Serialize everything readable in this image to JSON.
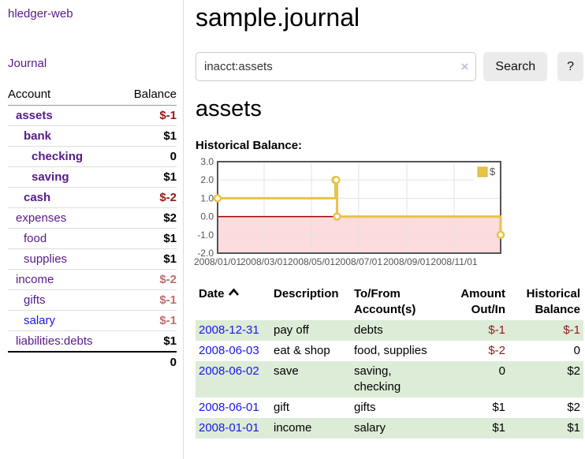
{
  "app": {
    "brand": "hledger-web",
    "journal_label": "Journal"
  },
  "sidebar": {
    "header": {
      "account": "Account",
      "balance": "Balance"
    },
    "accounts": [
      {
        "name": "assets",
        "balance": "$-1"
      },
      {
        "name": "bank",
        "balance": "$1"
      },
      {
        "name": "checking",
        "balance": "0"
      },
      {
        "name": "saving",
        "balance": "$1"
      },
      {
        "name": "cash",
        "balance": "$-2"
      },
      {
        "name": "expenses",
        "balance": "$2"
      },
      {
        "name": "food",
        "balance": "$1"
      },
      {
        "name": "supplies",
        "balance": "$1"
      },
      {
        "name": "income",
        "balance": "$-2"
      },
      {
        "name": "gifts",
        "balance": "$-1"
      },
      {
        "name": "salary",
        "balance": "$-1"
      },
      {
        "name": "liabilities:debts",
        "balance": "$1"
      }
    ],
    "total": "0"
  },
  "main": {
    "title": "sample.journal",
    "search": {
      "value": "inacct:assets",
      "clear_icon": "×",
      "button_label": "Search",
      "help_label": "?"
    },
    "account_heading": "assets",
    "section_label": "Historical Balance:"
  },
  "chart_data": {
    "type": "line",
    "title": "Historical Balance",
    "step": true,
    "legend": {
      "label": "$",
      "position": "top-right"
    },
    "x_start": "2008-01-01",
    "x_end": "2008-12-31",
    "points": [
      {
        "x": "2008-01-01",
        "y": 1
      },
      {
        "x": "2008-06-01",
        "y": 2
      },
      {
        "x": "2008-06-02",
        "y": 2
      },
      {
        "x": "2008-06-03",
        "y": 0
      },
      {
        "x": "2008-12-31",
        "y": -1
      }
    ],
    "ylim": [
      -2,
      3
    ],
    "y_ticks": [
      3,
      2,
      1,
      0,
      -1,
      -2
    ],
    "y_tick_labels": [
      "3.0",
      "2.0",
      "1.0",
      "0.0",
      "-1.0",
      "-2.0"
    ],
    "x_tick_labels": [
      "2008/01/01",
      "2008/03/01",
      "2008/05/01",
      "2008/07/01",
      "2008/09/01",
      "2008/11/01"
    ],
    "grid": true,
    "colors": {
      "series": "#e8c24a",
      "series_border": "#d8b13a",
      "marker_fill": "#ffffff",
      "negative_region": "#fcdcdc",
      "zero_line": "#990000",
      "grid": "#e3e3e3",
      "border": "#545454",
      "tick_text": "#545454"
    }
  },
  "table": {
    "headers": {
      "date": "Date",
      "description": "Description",
      "accounts": "To/From Account(s)",
      "amount": "Amount Out/In",
      "balance": "Historical Balance"
    },
    "rows": [
      {
        "date": "2008-12-31",
        "description": "pay off",
        "accounts": "debts",
        "amount": "$-1",
        "balance": "$-1"
      },
      {
        "date": "2008-06-03",
        "description": "eat & shop",
        "accounts": "food, supplies",
        "amount": "$-2",
        "balance": "0"
      },
      {
        "date": "2008-06-02",
        "description": "save",
        "accounts": "saving, checking",
        "amount": "0",
        "balance": "$2"
      },
      {
        "date": "2008-06-01",
        "description": "gift",
        "accounts": "gifts",
        "amount": "$1",
        "balance": "$2"
      },
      {
        "date": "2008-01-01",
        "description": "income",
        "accounts": "salary",
        "amount": "$1",
        "balance": "$1"
      }
    ]
  },
  "colors": {
    "link_purple": "#551a8b",
    "link_blue": "#1a15e8",
    "negative_strong": "#8f1a1a",
    "negative_soft": "#bd6d6d",
    "row_green": "#dcecd7"
  }
}
